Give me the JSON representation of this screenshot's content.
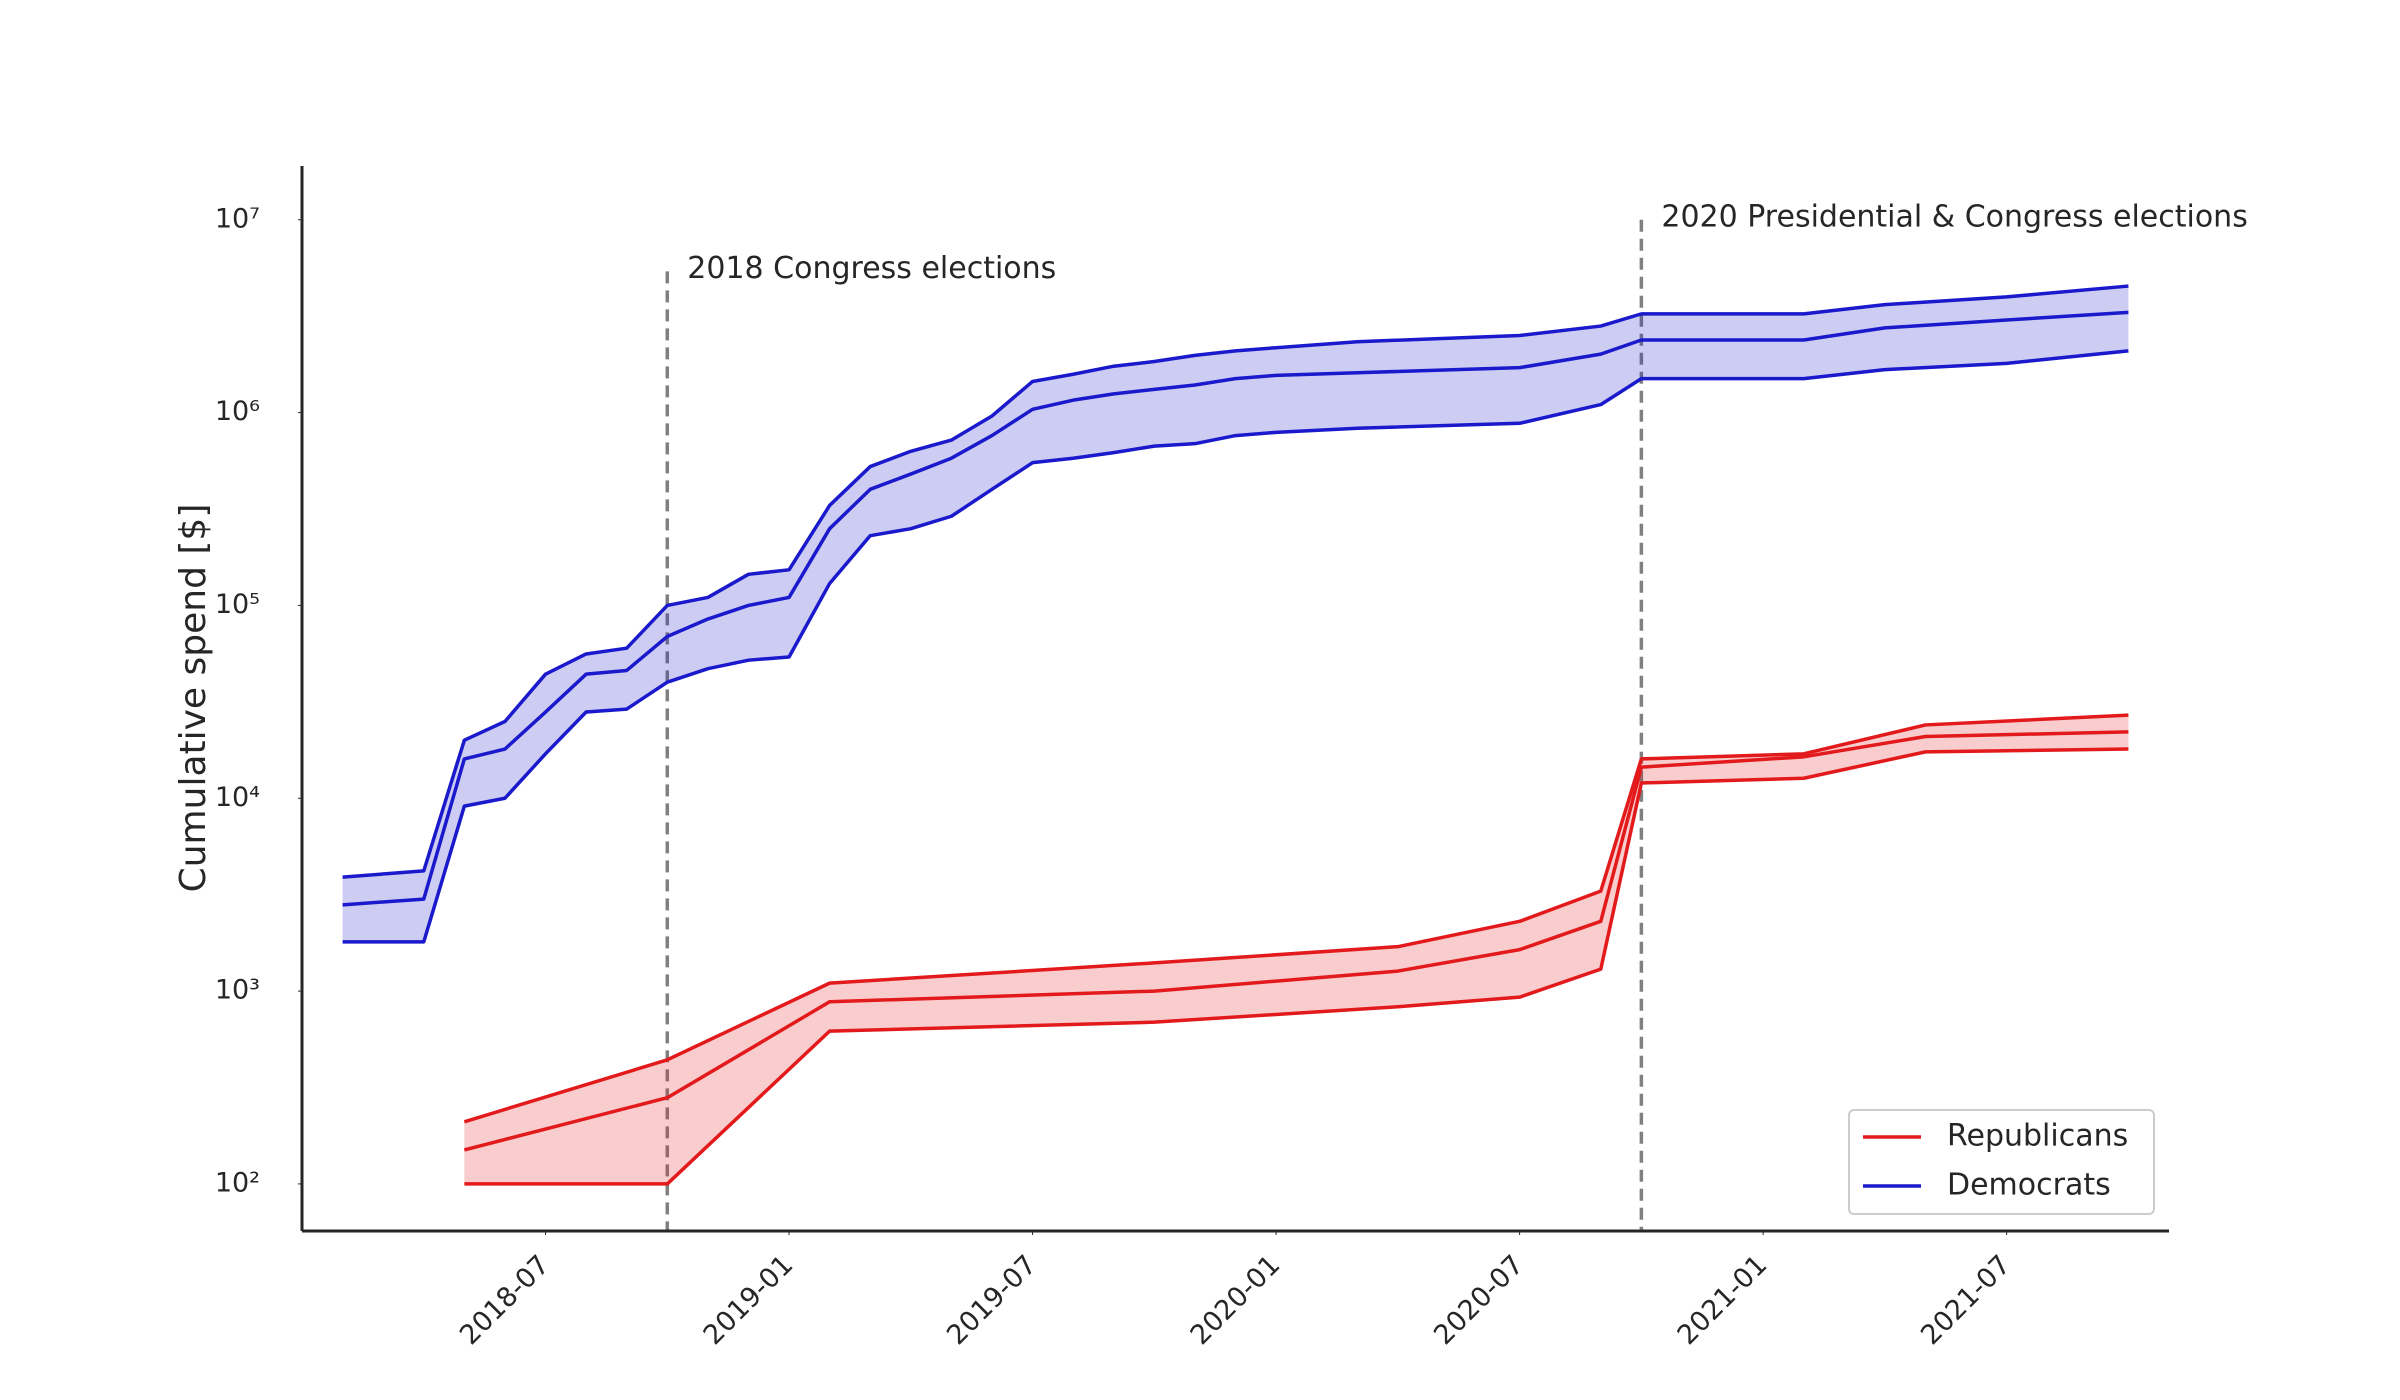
{
  "chart_data": {
    "type": "line",
    "ylabel": "Cumulative spend [$]",
    "yscale": "log",
    "xlim": [
      "2018-01",
      "2021-11"
    ],
    "xticks": [
      "2018-07",
      "2019-01",
      "2019-07",
      "2020-01",
      "2020-07",
      "2021-01",
      "2021-07"
    ],
    "ylim": [
      57,
      19000000
    ],
    "yticks": [
      {
        "value": 100,
        "label": "10²"
      },
      {
        "value": 1000,
        "label": "10³"
      },
      {
        "value": 10000,
        "label": "10⁴"
      },
      {
        "value": 100000,
        "label": "10⁵"
      },
      {
        "value": 1000000,
        "label": "10⁶"
      },
      {
        "value": 10000000,
        "label": "10⁷"
      }
    ],
    "legend": "lower right",
    "series": [
      {
        "name": "Republicans",
        "color": "#e31a1c",
        "x": [
          "2018-05",
          "2018-10",
          "2019-02",
          "2019-10",
          "2020-04",
          "2020-07",
          "2020-09",
          "2020-10",
          "2021-02",
          "2021-05",
          "2021-10"
        ],
        "lower": [
          100,
          100,
          620,
          690,
          830,
          930,
          1300,
          12000,
          12700,
          17400,
          18000
        ],
        "values": [
          150,
          280,
          880,
          1000,
          1270,
          1640,
          2300,
          14500,
          16400,
          20900,
          22100
        ],
        "upper": [
          210,
          440,
          1100,
          1400,
          1700,
          2300,
          3300,
          16000,
          17000,
          24000,
          27000
        ]
      },
      {
        "name": "Democrats",
        "color": "#1a1acc",
        "x": [
          "2018-02",
          "2018-04",
          "2018-05",
          "2018-06",
          "2018-07",
          "2018-08",
          "2018-09",
          "2018-10",
          "2018-11",
          "2018-12",
          "2019-01",
          "2019-02",
          "2019-03",
          "2019-04",
          "2019-05",
          "2019-06",
          "2019-07",
          "2019-08",
          "2019-09",
          "2019-10",
          "2019-11",
          "2019-12",
          "2020-01",
          "2020-03",
          "2020-07",
          "2020-09",
          "2020-10",
          "2021-02",
          "2021-04",
          "2021-07",
          "2021-10"
        ],
        "lower": [
          1800,
          1800,
          9100,
          10000,
          17000,
          28000,
          29000,
          40000,
          47000,
          52000,
          54000,
          130000,
          230000,
          250000,
          290000,
          400000,
          550000,
          580000,
          620000,
          670000,
          690000,
          760000,
          790000,
          830000,
          880000,
          1100000,
          1500000,
          1500000,
          1670000,
          1800000,
          2090000
        ],
        "values": [
          2800,
          3000,
          16000,
          18000,
          28000,
          44000,
          46000,
          69000,
          85000,
          100000,
          110000,
          250000,
          400000,
          480000,
          580000,
          760000,
          1040000,
          1160000,
          1250000,
          1320000,
          1390000,
          1500000,
          1560000,
          1610000,
          1710000,
          2010000,
          2380000,
          2380000,
          2750000,
          3020000,
          3310000
        ],
        "upper": [
          3900,
          4200,
          20000,
          25000,
          44000,
          56000,
          60000,
          100000,
          110000,
          145000,
          153000,
          330000,
          525000,
          630000,
          720000,
          960000,
          1450000,
          1580000,
          1740000,
          1840000,
          1980000,
          2090000,
          2170000,
          2330000,
          2510000,
          2810000,
          3250000,
          3250000,
          3630000,
          3980000,
          4530000
        ]
      }
    ],
    "annotations": [
      {
        "text": "2018 Congress elections",
        "x": "2018-10",
        "y": 5400000
      },
      {
        "text": "2020 Presidential & Congress elections",
        "x": "2020-10",
        "y": 10000000
      }
    ]
  }
}
